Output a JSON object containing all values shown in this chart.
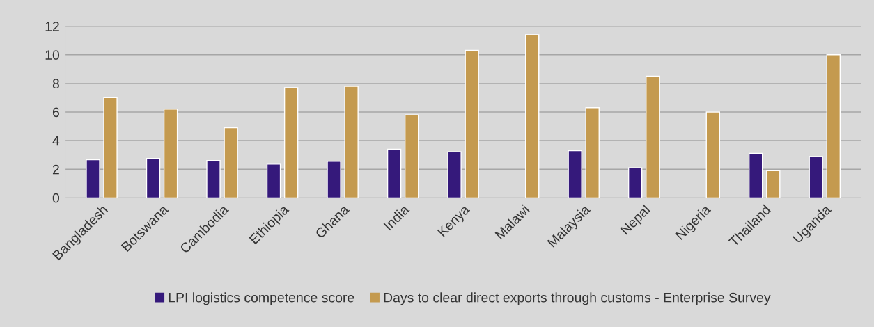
{
  "chart_data": {
    "type": "bar",
    "categories": [
      "Bangladesh",
      "Botswana",
      "Cambodia",
      "Ethiopia",
      "Ghana",
      "India",
      "Kenya",
      "Malawi",
      "Malaysia",
      "Nepal",
      "Nigeria",
      "Thailand",
      "Uganda"
    ],
    "series": [
      {
        "name": "LPI logistics competence score",
        "color": "#35197b",
        "values": [
          2.67,
          2.75,
          2.61,
          2.36,
          2.55,
          3.4,
          3.22,
          null,
          3.3,
          2.1,
          null,
          3.11,
          2.89
        ]
      },
      {
        "name": "Days to clear direct exports through customs - Enterprise Survey",
        "color": "#c49a4f",
        "values": [
          7.0,
          6.2,
          4.9,
          7.7,
          7.8,
          5.8,
          10.3,
          11.4,
          6.3,
          8.5,
          6.0,
          1.9,
          10.0
        ]
      }
    ],
    "ylim": [
      0,
      12
    ],
    "yticks": [
      0,
      2,
      4,
      6,
      8,
      10,
      12
    ],
    "grid": "y",
    "legend": "bottom"
  }
}
